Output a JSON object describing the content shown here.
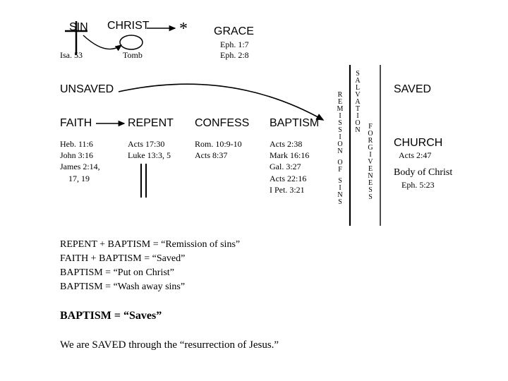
{
  "top": {
    "sin": "SIN",
    "christ": "CHRIST",
    "asterisk": "*",
    "grace": "GRACE",
    "isa": "Isa. 53",
    "tomb": "Tomb",
    "eph17": "Eph. 1:7",
    "eph28": "Eph. 2:8"
  },
  "states": {
    "unsaved": "UNSAVED",
    "saved": "SAVED"
  },
  "steps": {
    "faith": "FAITH",
    "repent": "REPENT",
    "confess": "CONFESS",
    "baptism": "BAPTISM"
  },
  "refs": {
    "faith": "Heb. 11:6\nJohn 3:16\nJames 2:14,\n    17, 19",
    "repent": "Acts 17:30\nLuke 13:3, 5",
    "confess": "Rom. 10:9-10\nActs 8:37",
    "baptism": "Acts 2:38\nMark 16:16\nGal. 3:27\nActs 22:16\nI Pet. 3:21"
  },
  "vcols": {
    "remission": "REMISSION OF SINS",
    "salvation": "SALVATION",
    "forgiveness": "FORGIVENESS"
  },
  "right": {
    "church": "CHURCH",
    "church_ref": "Acts 2:47",
    "body": "Body of Christ",
    "body_ref": "Eph. 5:23"
  },
  "equations": {
    "e1": "REPENT + BAPTISM = “Remission of sins”",
    "e2": "FAITH + BAPTISM = “Saved”",
    "e3": "BAPTISM = “Put on Christ”",
    "e4": "BAPTISM = “Wash away sins”",
    "e5": "BAPTISM = “Saves”",
    "e6": "We are SAVED through the “resurrection of Jesus.”"
  },
  "colors": {
    "text": "#000000",
    "bg": "#ffffff",
    "line": "#000000"
  }
}
